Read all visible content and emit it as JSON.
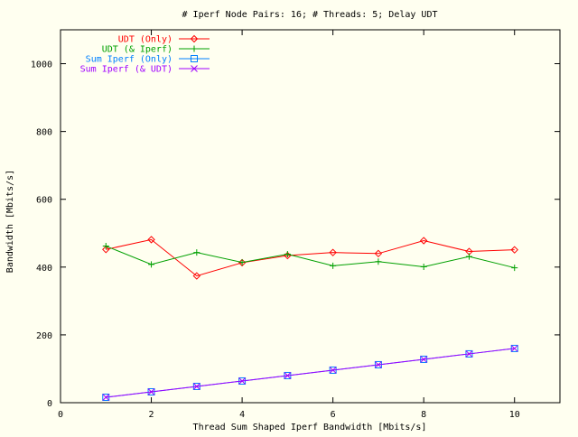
{
  "chart_data": {
    "type": "line",
    "title": "# Iperf Node Pairs: 16; # Threads: 5; Delay UDT",
    "xlabel": "Thread Sum Shaped Iperf Bandwidth [Mbits/s]",
    "ylabel": "Bandwidth [Mbits/s]",
    "xlim": [
      0,
      11
    ],
    "ylim": [
      0,
      1100
    ],
    "xticks": [
      0,
      2,
      4,
      6,
      8,
      10
    ],
    "yticks": [
      0,
      200,
      400,
      600,
      800,
      1000
    ],
    "grid": false,
    "legend_position": "top-left",
    "x": [
      1,
      2,
      3,
      4,
      5,
      6,
      7,
      8,
      9,
      10
    ],
    "series": [
      {
        "name": "UDT (Only)",
        "color": "#ff0000",
        "marker": "diamond",
        "values": [
          452,
          481,
          374,
          413,
          434,
          443,
          440,
          478,
          446,
          451
        ]
      },
      {
        "name": "UDT (& Iperf)",
        "color": "#00a000",
        "marker": "plus",
        "values": [
          462,
          408,
          443,
          414,
          438,
          404,
          416,
          401,
          431,
          398
        ]
      },
      {
        "name": "Sum Iperf (Only)",
        "color": "#0080ff",
        "marker": "square",
        "values": [
          16,
          32,
          48,
          64,
          80,
          96,
          112,
          128,
          144,
          160
        ]
      },
      {
        "name": "Sum Iperf (& UDT)",
        "color": "#a000ff",
        "marker": "cross",
        "values": [
          16,
          32,
          48,
          64,
          80,
          96,
          112,
          128,
          144,
          160
        ]
      }
    ]
  }
}
